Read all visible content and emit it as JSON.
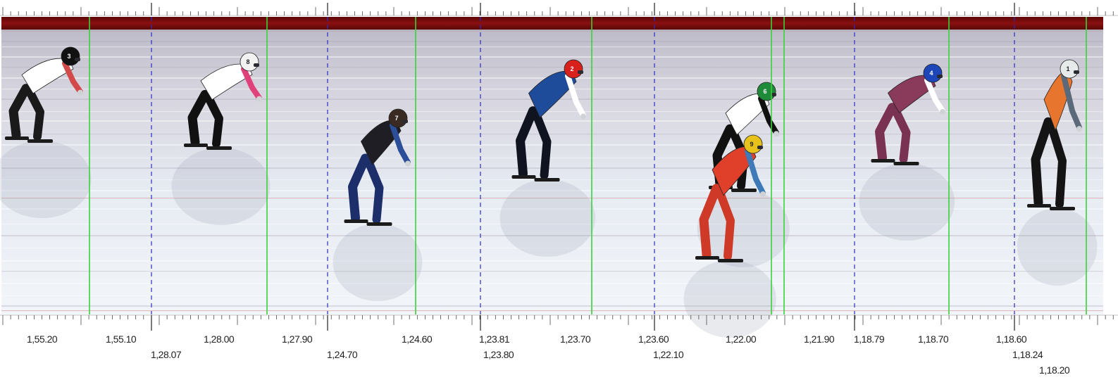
{
  "photo_finish": {
    "colors": {
      "wall_red": "#7a0a0a",
      "ice_top": "#c9c8d1",
      "ice_bottom": "#eef3f8",
      "finish_line_green": "#39d23a",
      "segment_divider_blue": "#2c2cc8",
      "tick_color": "#333333",
      "label_color": "#222222"
    },
    "time_labels": {
      "t1_55_20": "1,55.20",
      "t1_55_10": "1,55.10",
      "t1_28_07": "1,28.07",
      "t1_28_00": "1,28.00",
      "t1_27_90": "1,27.90",
      "t1_24_70": "1,24.70",
      "t1_24_60": "1,24.60",
      "t1_23_81": "1,23.81",
      "t1_23_80": "1,23.80",
      "t1_23_70": "1,23.70",
      "t1_23_60": "1,23.60",
      "t1_22_10": "1,22.10",
      "t1_22_00": "1,22.00",
      "t1_21_90": "1,21.90",
      "t1_18_79": "1,18.79",
      "t1_18_70": "1,18.70",
      "t1_18_60": "1,18.60",
      "t1_18_24": "1,18.24",
      "t1_18_20": "1,18.20"
    },
    "skaters": [
      {
        "bib": "3",
        "helmet": "#111111",
        "suit": "#ffffff",
        "accent": "#d24a4a",
        "legs": "#1a1a1a"
      },
      {
        "bib": "8",
        "helmet": "#f2f2f2",
        "suit": "#ffffff",
        "accent": "#e0417a",
        "legs": "#111111"
      },
      {
        "bib": "7",
        "helmet": "#3a2a24",
        "suit": "#1e1e24",
        "accent": "#2c4f9a",
        "legs": "#1c2f6a"
      },
      {
        "bib": "2",
        "helmet": "#d8201c",
        "suit": "#1e4c9a",
        "accent": "#ffffff",
        "legs": "#101420"
      },
      {
        "bib": "6",
        "helmet": "#1f8a3a",
        "suit": "#ffffff",
        "accent": "#111111",
        "legs": "#111111"
      },
      {
        "bib": "9",
        "helmet": "#e8c21a",
        "suit": "#e0402a",
        "accent": "#3f7ab8",
        "legs": "#cf3a28"
      },
      {
        "bib": "4",
        "helmet": "#1f46b8",
        "suit": "#8a3a5a",
        "accent": "#ffffff",
        "legs": "#7a3252"
      },
      {
        "bib": "1",
        "helmet": "#e6eaea",
        "suit": "#e8752e",
        "accent": "#5a6a7a",
        "legs": "#141414"
      }
    ]
  }
}
